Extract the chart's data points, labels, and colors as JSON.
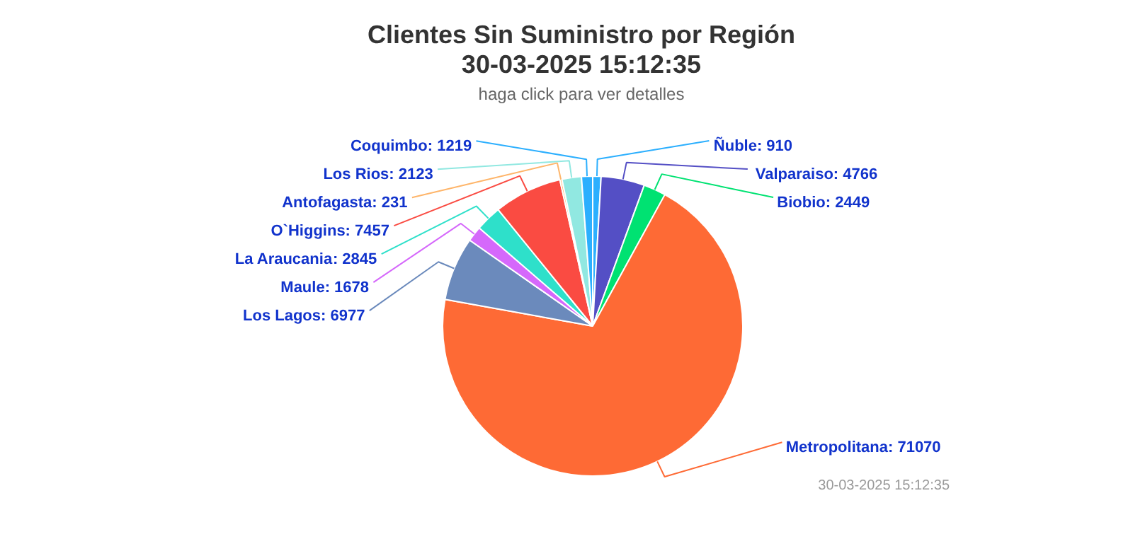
{
  "chart_data": {
    "type": "pie",
    "title": "Clientes Sin Suministro por Región\n30-03-2025 15:12:35",
    "subtitle": "haga click para ver detalles",
    "categories": [
      "Ñuble",
      "Valparaiso",
      "Biobio",
      "Metropolitana",
      "Los Lagos",
      "Maule",
      "La Araucania",
      "O`Higgins",
      "Antofagasta",
      "Los Rios",
      "Coquimbo"
    ],
    "values": [
      910,
      4766,
      2449,
      71070,
      6977,
      1678,
      2845,
      7457,
      231,
      2123,
      1219
    ],
    "colors": [
      "#2caffe",
      "#544fc5",
      "#00e272",
      "#fe6a35",
      "#6b8abc",
      "#d568fb",
      "#2ee0ca",
      "#fa4b42",
      "#feb56a",
      "#91e8e1",
      "#2caffe"
    ],
    "value_labels": [
      ": 910",
      ": 4766",
      ": 2449",
      ": 71070",
      ": 6977",
      ": 1678",
      ": 2845",
      ": 7457",
      ": 231",
      ": 2123",
      ": 1219"
    ],
    "annotations": [
      "30-03-2025 15:12:35"
    ]
  }
}
